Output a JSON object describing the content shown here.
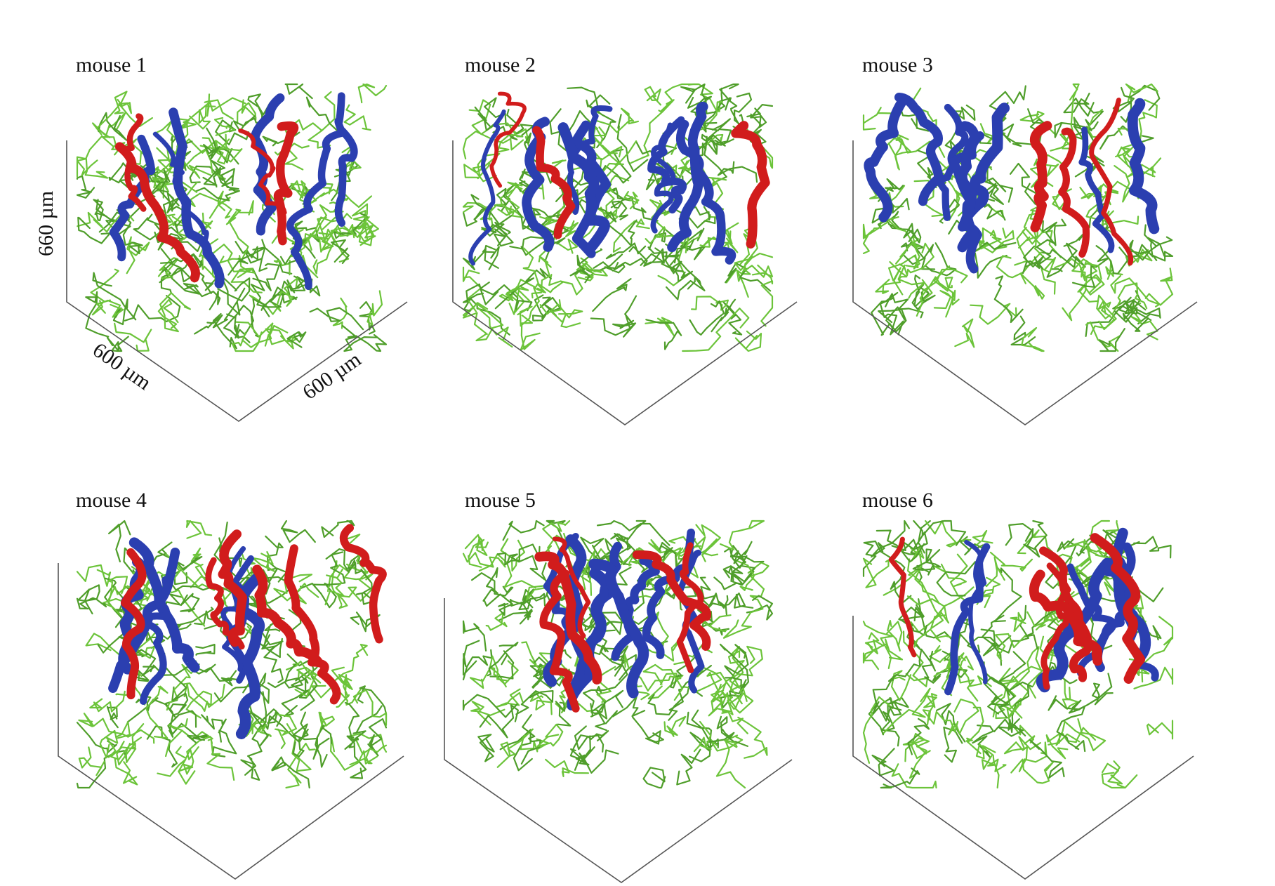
{
  "panels": [
    {
      "label": "mouse 1",
      "seed": 11,
      "green_density": 1.0,
      "red_branches": 4,
      "blue_branches": 6,
      "dims": {
        "height": "660 µm",
        "depth_left": "600 µm",
        "depth_right": "600 µm"
      }
    },
    {
      "label": "mouse 2",
      "seed": 23,
      "green_density": 1.0,
      "red_branches": 3,
      "blue_branches": 9
    },
    {
      "label": "mouse 3",
      "seed": 37,
      "green_density": 0.85,
      "red_branches": 3,
      "blue_branches": 8
    },
    {
      "label": "mouse 4",
      "seed": 41,
      "green_density": 0.9,
      "red_branches": 6,
      "blue_branches": 7
    },
    {
      "label": "mouse 5",
      "seed": 53,
      "green_density": 1.0,
      "red_branches": 5,
      "blue_branches": 8
    },
    {
      "label": "mouse 6",
      "seed": 67,
      "green_density": 0.9,
      "red_branches": 5,
      "blue_branches": 7
    }
  ],
  "colors": {
    "capillary": "#6cc43a",
    "capillary_dark": "#4f9e2a",
    "arteriole": "#d11c1c",
    "venule": "#2b3fb0",
    "frame": "#555555"
  }
}
